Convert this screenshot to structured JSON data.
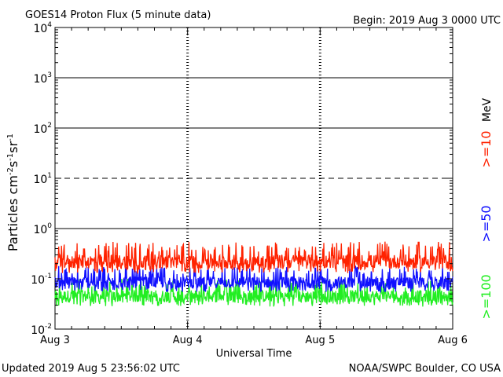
{
  "header": {
    "title": "GOES14 Proton Flux (5 minute data)",
    "begin": "Begin: 2019 Aug 3 0000 UTC"
  },
  "footer": {
    "updated": "Updated 2019 Aug  5 23:56:02 UTC",
    "credit": "NOAA/SWPC Boulder, CO USA"
  },
  "chart_data": {
    "type": "line",
    "title": "GOES14 Proton Flux (5 minute data)",
    "xlabel": "Universal Time",
    "ylabel_parts": [
      "Particles cm",
      "-2",
      "s",
      "-1",
      "sr",
      "-1"
    ],
    "yscale": "log",
    "ylim": [
      0.01,
      10000
    ],
    "y_ticks": [
      {
        "base": "10",
        "exp": "-2",
        "value": 0.01
      },
      {
        "base": "10",
        "exp": "-1",
        "value": 0.1
      },
      {
        "base": "10",
        "exp": "0",
        "value": 1
      },
      {
        "base": "10",
        "exp": "1",
        "value": 10
      },
      {
        "base": "10",
        "exp": "2",
        "value": 100
      },
      {
        "base": "10",
        "exp": "3",
        "value": 1000
      },
      {
        "base": "10",
        "exp": "4",
        "value": 10000
      }
    ],
    "xlim_days": [
      0,
      3
    ],
    "x_ticks": [
      {
        "label": "Aug 3",
        "day": 0
      },
      {
        "label": "Aug 4",
        "day": 1
      },
      {
        "label": "Aug 5",
        "day": 2
      },
      {
        "label": "Aug 6",
        "day": 3
      }
    ],
    "threshold_lines": [
      {
        "value": 1,
        "style": "solid"
      },
      {
        "value": 10,
        "style": "dashed"
      },
      {
        "value": 100,
        "style": "solid"
      },
      {
        "value": 1000,
        "style": "solid"
      }
    ],
    "legend_unit": "MeV",
    "series": [
      {
        "name": ">=10",
        "color": "#ff2200",
        "baseline": 0.22,
        "min": 0.13,
        "max": 0.55
      },
      {
        "name": ">=50",
        "color": "#1010ff",
        "baseline": 0.085,
        "min": 0.055,
        "max": 0.18
      },
      {
        "name": ">=100",
        "color": "#22ee22",
        "baseline": 0.045,
        "min": 0.028,
        "max": 0.1
      }
    ]
  }
}
